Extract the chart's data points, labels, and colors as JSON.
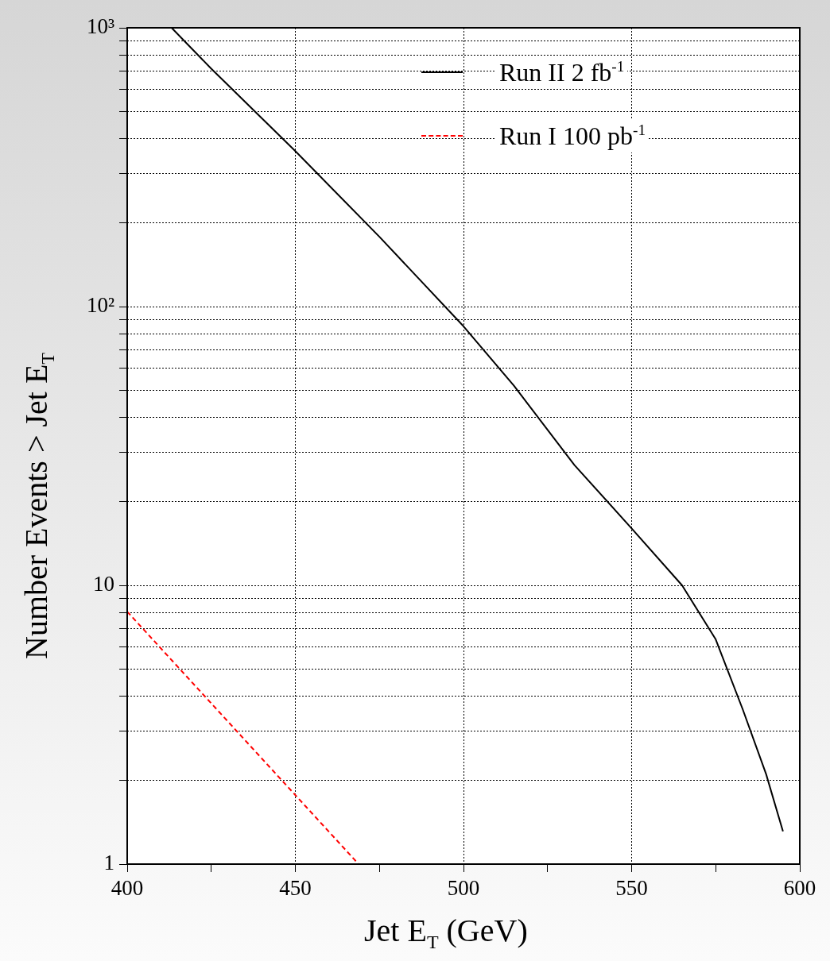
{
  "chart_data": {
    "type": "line",
    "xlabel": "Jet E$_{T}$ (GeV)",
    "ylabel": "Number Events > Jet E$_{T}$",
    "log": "y",
    "grid": true,
    "legend": "top right",
    "marker": "none",
    "xlim": [
      400,
      600
    ],
    "xticks": [
      400,
      {
        "value": 425,
        "label": null
      },
      450,
      {
        "value": 475,
        "label": null
      },
      500,
      {
        "value": 525,
        "label": null
      },
      550,
      {
        "value": 575,
        "label": null
      },
      600
    ],
    "ylim": [
      1,
      1000
    ],
    "yticks": [
      1,
      {
        "value": 2,
        "label": null
      },
      {
        "value": 3,
        "label": null
      },
      {
        "value": 4,
        "label": null
      },
      {
        "value": 5,
        "label": null
      },
      {
        "value": 6,
        "label": null
      },
      {
        "value": 7,
        "label": null
      },
      {
        "value": 8,
        "label": null
      },
      {
        "value": 9,
        "label": null
      },
      10,
      {
        "value": 20,
        "label": null
      },
      {
        "value": 30,
        "label": null
      },
      {
        "value": 40,
        "label": null
      },
      {
        "value": 50,
        "label": null
      },
      {
        "value": 60,
        "label": null
      },
      {
        "value": 70,
        "label": null
      },
      {
        "value": 80,
        "label": null
      },
      {
        "value": 90,
        "label": null
      },
      {
        "value": 100,
        "label": "10²"
      },
      {
        "value": 200,
        "label": null
      },
      {
        "value": 300,
        "label": null
      },
      {
        "value": 400,
        "label": null
      },
      {
        "value": 500,
        "label": null
      },
      {
        "value": 600,
        "label": null
      },
      {
        "value": 700,
        "label": null
      },
      {
        "value": 800,
        "label": null
      },
      {
        "value": 900,
        "label": null
      },
      {
        "value": 1000,
        "label": "10³"
      }
    ],
    "series": [
      {
        "name": "Run II 2 fb$^{-1}$",
        "color": "#000000",
        "line_style": "solid",
        "x": [
          413.2,
          425,
          450,
          475,
          500,
          515,
          533,
          550,
          565,
          575,
          583,
          590,
          595
        ],
        "values": [
          1000,
          713,
          361,
          178,
          85,
          52,
          27,
          16,
          10,
          6.4,
          3.6,
          2.1,
          1.31
        ]
      },
      {
        "name": "Run I 100 pb$^{-1}$",
        "color": "#ff0000",
        "line_style": "dashed",
        "x": [
          400,
          468.8
        ],
        "values": [
          8.05,
          1
        ]
      }
    ]
  }
}
